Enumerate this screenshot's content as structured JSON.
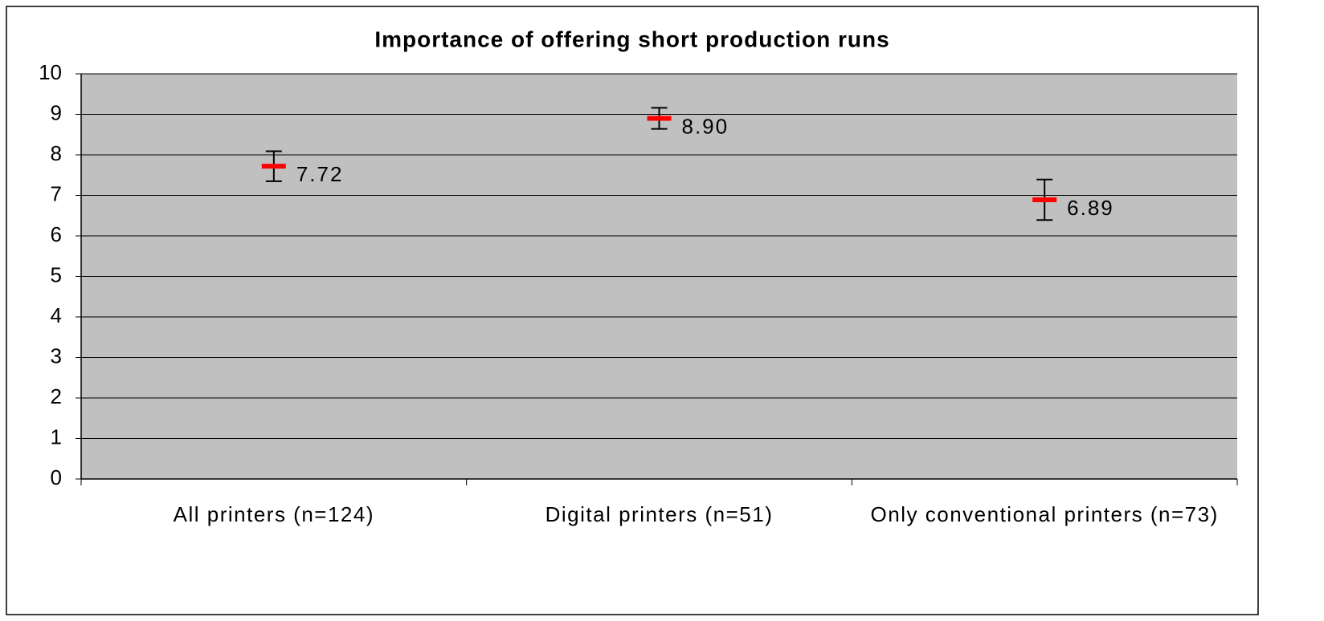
{
  "chart_data": {
    "type": "errorbar",
    "title": "Importance of offering short production runs",
    "categories": [
      "All printers (n=124)",
      "Digital printers (n=51)",
      "Only conventional printers (n=73)"
    ],
    "values": [
      7.72,
      8.9,
      6.89
    ],
    "value_labels": [
      "7.72",
      "8.90",
      "6.89"
    ],
    "errors": [
      0.37,
      0.26,
      0.5
    ],
    "color": "#ff0000",
    "ylim": [
      0,
      10
    ],
    "yticks": [
      0,
      1,
      2,
      3,
      4,
      5,
      6,
      7,
      8,
      9,
      10
    ],
    "grid": true
  }
}
